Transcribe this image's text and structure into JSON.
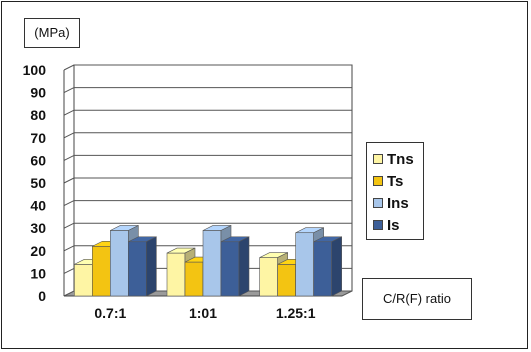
{
  "chart_data": {
    "type": "bar",
    "unit_label": "(MPa)",
    "xlabel": "C/R(F) ratio",
    "categories": [
      "0.7:1",
      "1:01",
      "1.25:1"
    ],
    "series": [
      {
        "name": "Tns",
        "values": [
          14,
          19,
          17
        ],
        "color": "#fef5a4"
      },
      {
        "name": "Ts",
        "values": [
          22,
          15,
          14
        ],
        "color": "#f3c412"
      },
      {
        "name": "Ins",
        "values": [
          29,
          29,
          28
        ],
        "color": "#a8c6ea"
      },
      {
        "name": "Is",
        "values": [
          24,
          24,
          24
        ],
        "color": "#3d5f98"
      }
    ],
    "ylim": [
      0,
      100
    ],
    "yticks": [
      "0",
      "10",
      "20",
      "30",
      "40",
      "50",
      "60",
      "70",
      "80",
      "90",
      "100"
    ],
    "grid": true,
    "legend_position": "right"
  }
}
